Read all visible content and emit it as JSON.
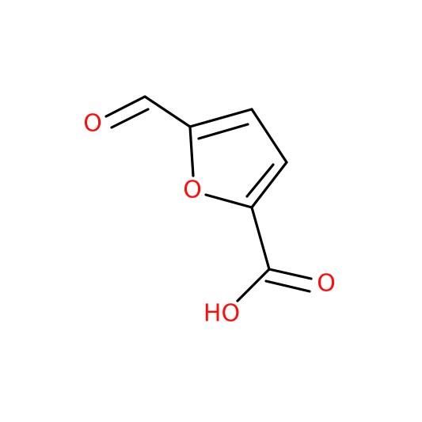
{
  "atoms": [
    {
      "label": "O"
    },
    {
      "label": "O"
    },
    {
      "label": "O"
    },
    {
      "label": "HO"
    }
  ]
}
